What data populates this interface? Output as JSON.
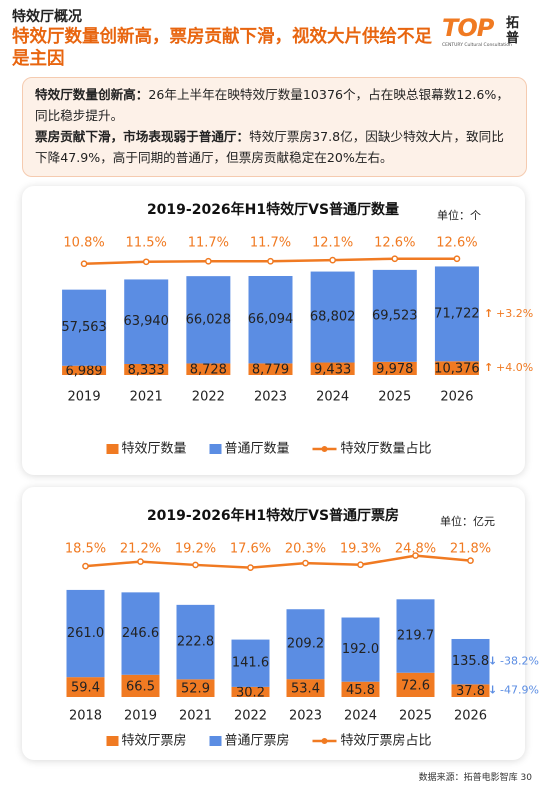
{
  "header": {
    "section": "特效厅概况",
    "title": "特效厅数量创新高，票房贡献下滑，视效大片供给不足是主因",
    "logo": {
      "mark": "TOP",
      "name": "拓普",
      "subtitle": "CENTURY Cultural Consultation"
    }
  },
  "summary": [
    {
      "lead": "特效厅数量创新高：",
      "text": "26年上半年在映特效厅数量10376个，占在映总银幕数12.6%，同比稳步提升。"
    },
    {
      "lead": "票房贡献下滑，市场表现弱于普通厅：",
      "text": "特效厅票房37.8亿，因缺少特效大片，致同比下降47.9%，高于同期的普通厅，但票房贡献稳定在20%左右。"
    }
  ],
  "chart_data": [
    {
      "type": "bar",
      "stacked": true,
      "title": "2019-2026年H1特效厅VS普通厅数量",
      "unit": "单位：个",
      "categories": [
        "2019",
        "2021",
        "2022",
        "2023",
        "2024",
        "2025",
        "2026"
      ],
      "ylim": [
        0,
        90000
      ],
      "y2lim": [
        0,
        100
      ],
      "series": [
        {
          "name": "特效厅数量",
          "color": "#f07a22",
          "values": [
            6989,
            8333,
            8728,
            8779,
            9433,
            9978,
            10376
          ],
          "value_labels": [
            "6,989",
            "8,333",
            "8,728",
            "8,779",
            "9,433",
            "9,978",
            "10,376"
          ]
        },
        {
          "name": "普通厅数量",
          "color": "#5b8de3",
          "values": [
            57563,
            63940,
            66028,
            66094,
            68802,
            69523,
            71722
          ],
          "value_labels": [
            "57,563",
            "63,940",
            "66,028",
            "66,094",
            "68,802",
            "69,523",
            "71,722"
          ]
        },
        {
          "name": "特效厅数量占比",
          "type": "line",
          "axis": "y2",
          "color": "#f07a22",
          "values": [
            10.8,
            11.5,
            11.7,
            11.7,
            12.1,
            12.6,
            12.6
          ],
          "value_labels": [
            "10.8%",
            "11.5%",
            "11.7%",
            "11.7%",
            "12.1%",
            "12.6%",
            "12.6%"
          ]
        }
      ],
      "annotations": [
        "+3.2%",
        "+4.0%"
      ],
      "annotation_color": "#f07a22"
    },
    {
      "type": "bar",
      "stacked": true,
      "title": "2019-2026年H1特效厅VS普通厅票房",
      "unit": "单位：亿元",
      "categories": [
        "2018",
        "2019",
        "2021",
        "2022",
        "2023",
        "2024",
        "2025",
        "2026"
      ],
      "ylim": [
        0,
        380
      ],
      "y2lim": [
        0,
        100
      ],
      "series": [
        {
          "name": "特效厅票房",
          "color": "#f07a22",
          "values": [
            59.4,
            66.5,
            52.9,
            30.2,
            53.4,
            45.8,
            72.6,
            37.8
          ]
        },
        {
          "name": "普通厅票房",
          "color": "#5b8de3",
          "values": [
            261.0,
            246.6,
            222.8,
            141.6,
            209.2,
            192.0,
            219.7,
            135.8
          ],
          "value_labels": [
            "261.0",
            "246.6",
            "222.8",
            "141.6",
            "209.2",
            "192.0",
            "219.7",
            "135.8"
          ]
        },
        {
          "name": "特效厅票房占比",
          "type": "line",
          "axis": "y2",
          "color": "#f07a22",
          "values": [
            18.5,
            21.2,
            19.2,
            17.6,
            20.3,
            19.3,
            24.8,
            21.8
          ],
          "value_labels": [
            "18.5%",
            "21.2%",
            "19.2%",
            "17.6%",
            "20.3%",
            "19.3%",
            "24.8%",
            "21.8%"
          ]
        }
      ],
      "annotations": [
        "-38.2%",
        "-47.9%"
      ],
      "annotation_color": "#5b8de3"
    }
  ],
  "footer": {
    "source": "数据来源：拓普电影智库",
    "page": "30"
  }
}
